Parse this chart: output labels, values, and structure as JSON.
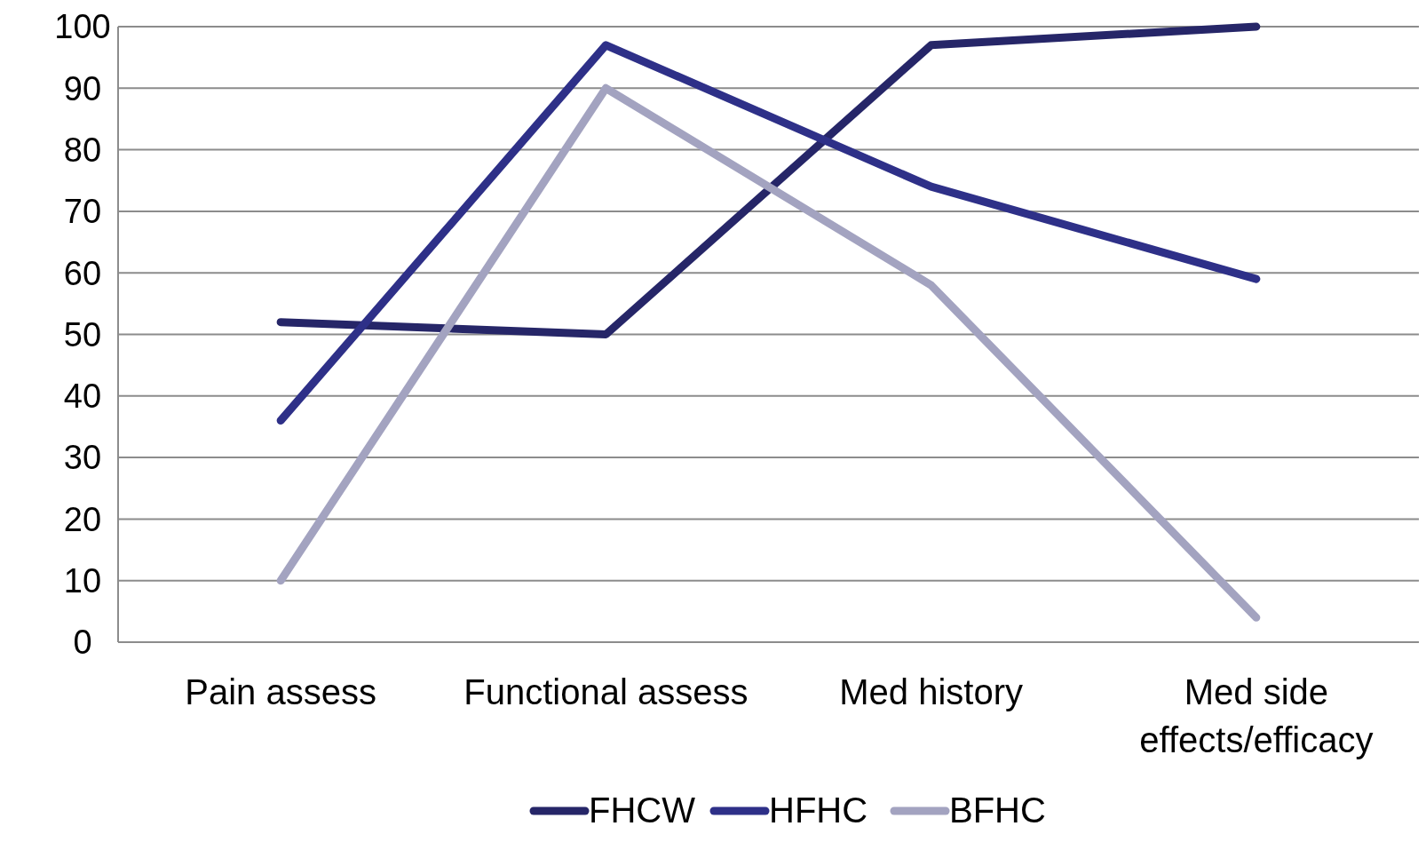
{
  "chart_data": {
    "type": "line",
    "categories": [
      "Pain assess",
      "Functional assess",
      "Med history",
      "Med side effects/efficacy"
    ],
    "series": [
      {
        "name": "FHCW",
        "color": "#262668",
        "values": [
          52,
          50,
          97,
          100
        ]
      },
      {
        "name": "HFHC",
        "color": "#2e3088",
        "values": [
          36,
          97,
          74,
          59
        ]
      },
      {
        "name": "BFHC",
        "color": "#a3a3c0",
        "values": [
          10,
          90,
          58,
          4
        ]
      }
    ],
    "ylim": [
      0,
      100
    ],
    "yticks": [
      0,
      10,
      20,
      30,
      40,
      50,
      60,
      70,
      80,
      90,
      100
    ],
    "grid": "y",
    "legend": "bottom",
    "marker": "none",
    "line_style": "solid"
  }
}
